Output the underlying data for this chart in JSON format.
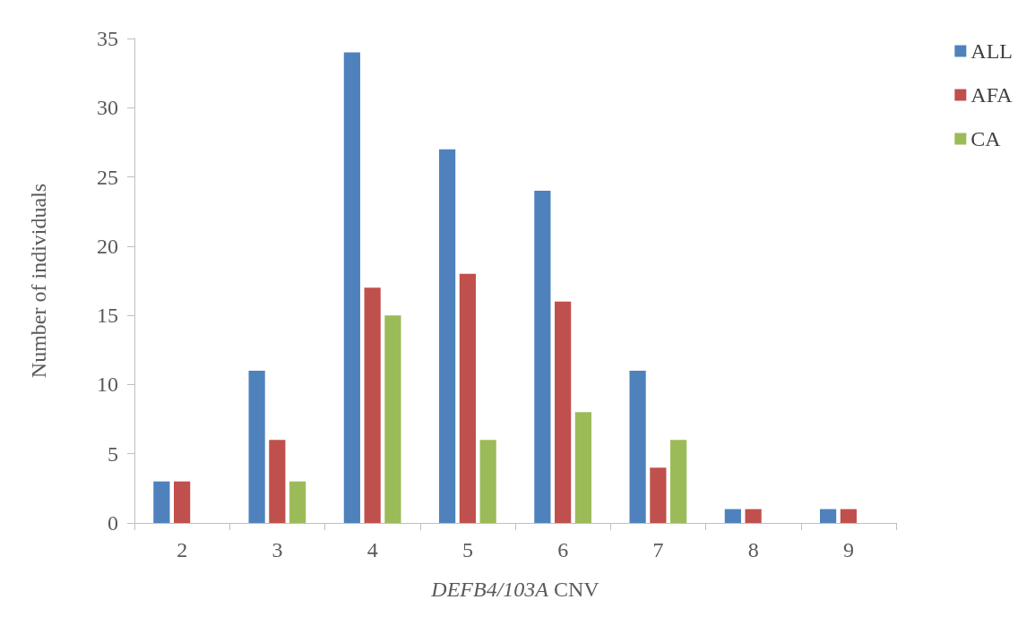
{
  "chart_data": {
    "type": "bar",
    "xlabel": "DEFB4/103A CNV",
    "ylabel": "Number of individuals",
    "categories": [
      "2",
      "3",
      "4",
      "5",
      "6",
      "7",
      "8",
      "9"
    ],
    "series": [
      {
        "name": "ALL",
        "color": "#4f81bd",
        "values": [
          3,
          11,
          34,
          27,
          24,
          11,
          1,
          1
        ]
      },
      {
        "name": "AFA",
        "color": "#c0504d",
        "values": [
          3,
          6,
          17,
          18,
          16,
          4,
          1,
          1
        ]
      },
      {
        "name": "CA",
        "color": "#9bbb59",
        "values": [
          0,
          3,
          15,
          6,
          8,
          6,
          0,
          0
        ]
      }
    ],
    "ylim": [
      0,
      35
    ],
    "yticks": [
      0,
      5,
      10,
      15,
      20,
      25,
      30,
      35
    ],
    "grid": false,
    "legend": "right"
  }
}
